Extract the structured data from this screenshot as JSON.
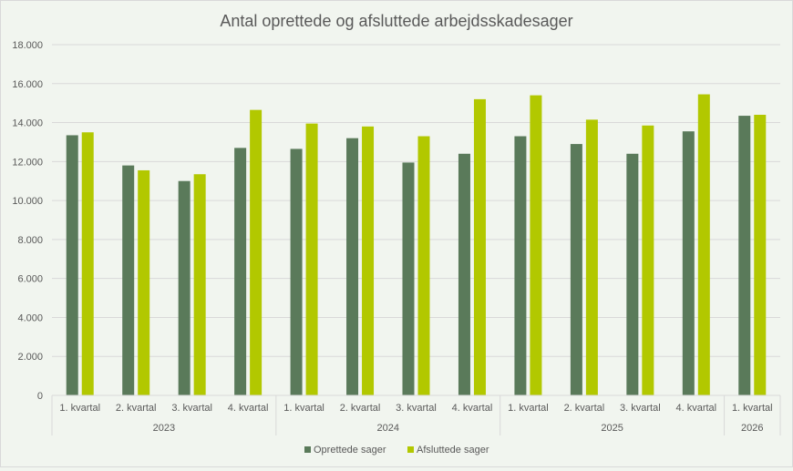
{
  "chart_data": {
    "type": "bar",
    "title": "Antal oprettede og afsluttede arbejdsskadesager",
    "xlabel": "",
    "ylabel": "",
    "ylim": [
      0,
      18000
    ],
    "yticks": [
      0,
      2000,
      4000,
      6000,
      8000,
      10000,
      12000,
      14000,
      16000,
      18000
    ],
    "ytick_labels": [
      "0",
      "2.000",
      "4.000",
      "6.000",
      "8.000",
      "10.000",
      "12.000",
      "14.000",
      "16.000",
      "18.000"
    ],
    "categories": [
      "1. kvartal",
      "2. kvartal",
      "3. kvartal",
      "4. kvartal",
      "1. kvartal",
      "2. kvartal",
      "3. kvartal",
      "4. kvartal",
      "1. kvartal",
      "2. kvartal",
      "3. kvartal",
      "4. kvartal",
      "1. kvartal"
    ],
    "groups": [
      {
        "label": "2023",
        "count": 4
      },
      {
        "label": "2024",
        "count": 4
      },
      {
        "label": "2025",
        "count": 4
      },
      {
        "label": "2026",
        "count": 1
      }
    ],
    "series": [
      {
        "name": "Oprettede sager",
        "color": "#5a7a5a",
        "values": [
          13350,
          11800,
          11000,
          12700,
          12650,
          13200,
          11950,
          12400,
          13300,
          12900,
          12400,
          13550,
          14350
        ]
      },
      {
        "name": "Afsluttede sager",
        "color": "#b2c800",
        "values": [
          13500,
          11550,
          11350,
          14650,
          13950,
          13800,
          13300,
          15200,
          15400,
          14150,
          13850,
          15450,
          14400
        ]
      }
    ],
    "grid": true,
    "legend_position": "bottom"
  }
}
